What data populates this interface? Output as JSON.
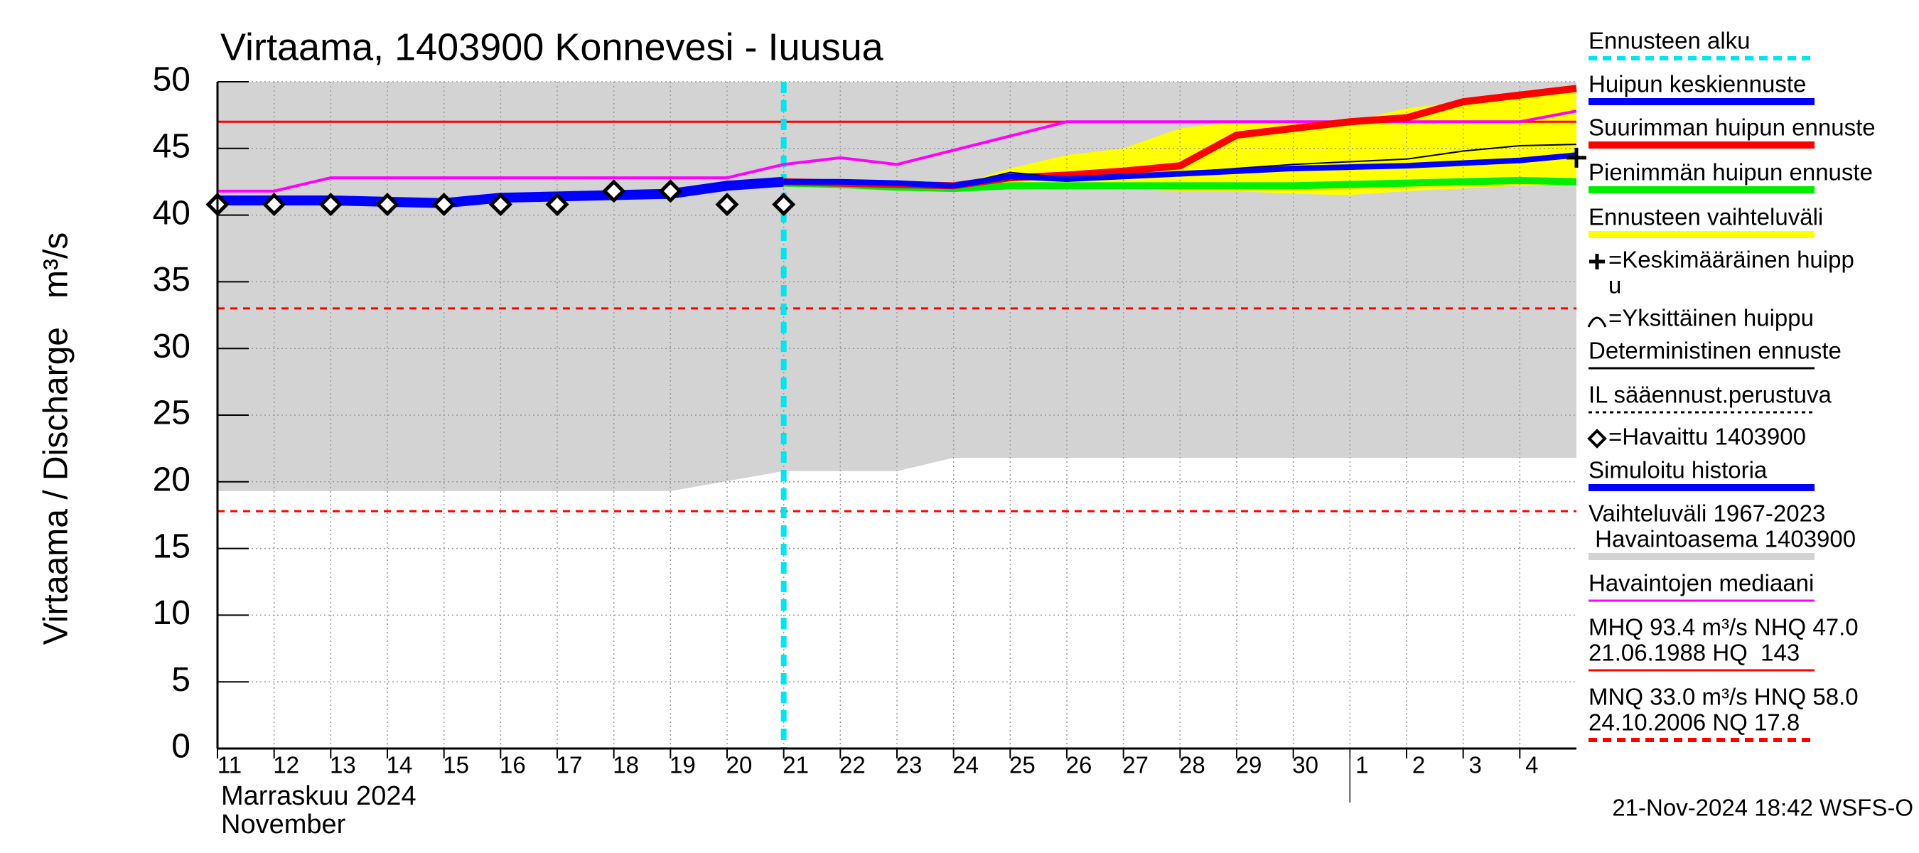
{
  "chart_data": {
    "type": "line",
    "title": "Virtaama, 1403900 Konnevesi - Iuusua",
    "y_label": "Virtaama / Discharge   m³/s",
    "x_label_lines": [
      "Marraskuu 2024",
      "November"
    ],
    "footer": "21-Nov-2024 18:42 WSFS-O",
    "xlim": [
      0,
      24
    ],
    "xticks": [
      {
        "value": 0,
        "label": "11"
      },
      {
        "value": 1,
        "label": "12"
      },
      {
        "value": 2,
        "label": "13"
      },
      {
        "value": 3,
        "label": "14"
      },
      {
        "value": 4,
        "label": "15"
      },
      {
        "value": 5,
        "label": "16"
      },
      {
        "value": 6,
        "label": "17"
      },
      {
        "value": 7,
        "label": "18"
      },
      {
        "value": 8,
        "label": "19"
      },
      {
        "value": 9,
        "label": "20"
      },
      {
        "value": 10,
        "label": "21"
      },
      {
        "value": 11,
        "label": "22"
      },
      {
        "value": 12,
        "label": "23"
      },
      {
        "value": 13,
        "label": "24"
      },
      {
        "value": 14,
        "label": "25"
      },
      {
        "value": 15,
        "label": "26"
      },
      {
        "value": 16,
        "label": "27"
      },
      {
        "value": 17,
        "label": "28"
      },
      {
        "value": 18,
        "label": "29"
      },
      {
        "value": 19,
        "label": "30"
      },
      {
        "value": 20,
        "label": "1"
      },
      {
        "value": 21,
        "label": "2"
      },
      {
        "value": 22,
        "label": "3"
      },
      {
        "value": 23,
        "label": "4"
      }
    ],
    "month_boundary": 20,
    "ylim": [
      0,
      50
    ],
    "yticks": [
      0,
      5,
      10,
      15,
      20,
      25,
      30,
      35,
      40,
      45,
      50
    ],
    "grid": true,
    "forecast_start": 10,
    "areas": [
      {
        "color": "#d3d3d3",
        "x": [
          0,
          8,
          10,
          12,
          13,
          24
        ],
        "lower": [
          19.3,
          19.3,
          20.8,
          20.8,
          21.8,
          21.8
        ],
        "upper": [
          50,
          50,
          50,
          50,
          50,
          50
        ]
      },
      {
        "color": "#ffff00",
        "x": [
          10,
          11,
          12,
          13,
          14,
          15,
          16,
          17,
          18,
          19,
          20,
          21,
          22,
          23,
          24
        ],
        "lower": [
          42.5,
          42.4,
          42.3,
          42.0,
          41.9,
          42.0,
          42.0,
          41.8,
          41.8,
          41.6,
          41.5,
          41.8,
          42.0,
          42.2,
          42.2
        ],
        "upper": [
          42.5,
          42.5,
          42.5,
          42.2,
          43.5,
          44.5,
          45.0,
          46.5,
          47.0,
          47.0,
          47.0,
          48.0,
          48.5,
          49.0,
          49.5
        ]
      }
    ],
    "reference_lines": [
      {
        "value": 47.0,
        "color": "#ff0000",
        "style": "solid"
      },
      {
        "value": 33.0,
        "color": "#ff0000",
        "style": "dashed"
      },
      {
        "value": 17.8,
        "color": "#ff0000",
        "style": "dashed"
      }
    ],
    "series": [
      {
        "color": "#ff00ff",
        "width": 4,
        "x": [
          0,
          1,
          2,
          9,
          10,
          11,
          12,
          15,
          23,
          24
        ],
        "values": [
          41.8,
          41.8,
          42.8,
          42.8,
          43.8,
          44.3,
          43.8,
          47.0,
          47.0,
          47.8
        ]
      },
      {
        "color": "#0000ff",
        "width": 14,
        "x": [
          0,
          1,
          2,
          3,
          4,
          5,
          6,
          7,
          8,
          9,
          10
        ],
        "values": [
          41.1,
          41.1,
          41.1,
          41.0,
          40.9,
          41.3,
          41.4,
          41.5,
          41.6,
          42.2,
          42.5
        ]
      },
      {
        "color": "#00ee00",
        "width": 10,
        "x": [
          10,
          11,
          12,
          13,
          14,
          15,
          16,
          17,
          18,
          19,
          20,
          21,
          22,
          23,
          24
        ],
        "values": [
          42.4,
          42.3,
          42.1,
          42.0,
          42.2,
          42.2,
          42.2,
          42.2,
          42.2,
          42.2,
          42.3,
          42.4,
          42.5,
          42.6,
          42.5
        ]
      },
      {
        "color": "#ff0000",
        "width": 10,
        "x": [
          10,
          11,
          12,
          13,
          14,
          15,
          16,
          17,
          18,
          19,
          20,
          21,
          22,
          23,
          24
        ],
        "values": [
          42.5,
          42.4,
          42.3,
          42.2,
          42.8,
          43.0,
          43.3,
          43.7,
          46.0,
          46.5,
          47.0,
          47.3,
          48.5,
          49.0,
          49.5
        ]
      },
      {
        "color": "#000000",
        "width": 2,
        "x": [
          10,
          11,
          12,
          13,
          14,
          15,
          16,
          17,
          18,
          19,
          20,
          21,
          22,
          23,
          24
        ],
        "values": [
          42.5,
          42.5,
          42.4,
          42.2,
          43.2,
          42.8,
          43.0,
          43.2,
          43.5,
          43.8,
          44.0,
          44.2,
          44.8,
          45.2,
          45.3
        ]
      },
      {
        "color": "#000000",
        "width": 2,
        "dashed": true,
        "x": [
          10,
          11,
          12,
          13,
          14,
          15,
          16,
          17,
          18,
          19,
          20,
          21,
          22,
          23,
          24
        ],
        "values": [
          42.5,
          42.5,
          42.4,
          42.2,
          42.7,
          42.7,
          42.9,
          43.0,
          43.2,
          43.4,
          43.6,
          43.7,
          43.9,
          44.1,
          44.3
        ]
      },
      {
        "color": "#0000ff",
        "width": 8,
        "x": [
          10,
          11,
          12,
          13,
          14,
          15,
          16,
          17,
          18,
          19,
          20,
          21,
          22,
          23,
          24
        ],
        "values": [
          42.5,
          42.5,
          42.4,
          42.2,
          42.9,
          42.7,
          42.9,
          43.1,
          43.3,
          43.5,
          43.6,
          43.7,
          43.9,
          44.1,
          44.5
        ]
      }
    ],
    "observed": {
      "x": [
        0,
        1,
        2,
        3,
        4,
        5,
        6,
        7,
        8,
        9,
        10
      ],
      "values": [
        40.8,
        40.8,
        40.8,
        40.8,
        40.8,
        40.8,
        40.8,
        41.8,
        41.8,
        40.8,
        40.8
      ]
    },
    "mean_peak": {
      "x": 24,
      "value": 44.3
    },
    "legend": [
      {
        "lines": [
          "Ennusteen alku"
        ],
        "color": "#00e5ee",
        "swatch": "dashed"
      },
      {
        "lines": [
          "Huipun keskiennuste"
        ],
        "color": "#0000ff",
        "swatch": "thick"
      },
      {
        "lines": [
          "Suurimman huipun ennuste"
        ],
        "color": "#ff0000",
        "swatch": "thick"
      },
      {
        "lines": [
          "Pienimmän huipun ennuste"
        ],
        "color": "#00ee00",
        "swatch": "thick"
      },
      {
        "lines": [
          "Ennusteen vaihteluväli"
        ],
        "color": "#ffff00",
        "swatch": "thick"
      },
      {
        "lines": [
          "=Keskimääräinen huipp",
          "u"
        ],
        "symbol": "plus"
      },
      {
        "lines": [
          "=Yksittäinen huippu"
        ],
        "symbol": "arc"
      },
      {
        "lines": [
          "Deterministinen ennuste"
        ],
        "color": "#000000",
        "swatch": "thin"
      },
      {
        "lines": [
          "IL sääennust.perustuva"
        ],
        "color": "#000000",
        "swatch": "dotted"
      },
      {
        "lines": [
          "=Havaittu 1403900"
        ],
        "symbol": "diamond"
      },
      {
        "lines": [
          "Simuloitu historia"
        ],
        "color": "#0000ff",
        "swatch": "thick"
      },
      {
        "lines": [
          "Vaihteluväli 1967-2023",
          " Havaintoasema 1403900"
        ],
        "color": "#d3d3d3",
        "swatch": "thick"
      },
      {
        "lines": [
          "Havaintojen mediaani"
        ],
        "color": "#ff00ff",
        "swatch": "thin"
      },
      {
        "lines": [
          "MHQ 93.4 m³/s NHQ 47.0",
          "21.06.1988 HQ  143"
        ],
        "color": "#ff0000",
        "swatch": "thin"
      },
      {
        "lines": [
          "MNQ 33.0 m³/s HNQ 58.0",
          "24.10.2006 NQ 17.8"
        ],
        "color": "#ff0000",
        "swatch": "dashed"
      }
    ]
  }
}
